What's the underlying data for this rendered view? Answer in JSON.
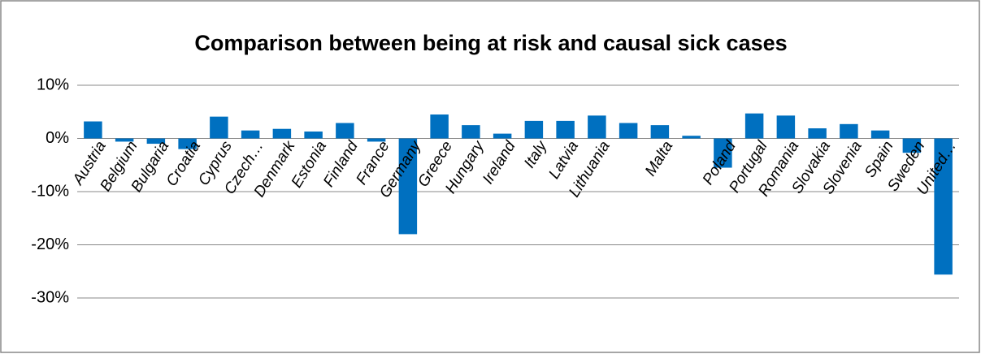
{
  "chart_data": {
    "type": "bar",
    "title": "Comparison between being at risk and causal sick cases",
    "categories": [
      "Austria",
      "Belgium",
      "Bulgaria",
      "Croatia",
      "Cyprus",
      "Czech…",
      "Denmark",
      "Estonia",
      "Finland",
      "France",
      "Germany",
      "Greece",
      "Hungary",
      "Ireland",
      "Italy",
      "Latvia",
      "Lithuania",
      null,
      "Malta",
      null,
      "Poland",
      "Portugal",
      "Romania",
      "Slovakia",
      "Slovenia",
      "Spain",
      "Sweden",
      "United…"
    ],
    "values": [
      3.2,
      -0.6,
      -1.0,
      -2.0,
      4.1,
      1.5,
      1.8,
      1.3,
      2.9,
      -0.6,
      -18,
      4.5,
      2.5,
      0.9,
      3.3,
      3.3,
      4.3,
      2.9,
      2.5,
      0.5,
      -5.5,
      4.7,
      4.3,
      1.9,
      2.7,
      1.5,
      -2.7,
      -25.6
    ],
    "color": "#0070c0",
    "ylim": [
      -30,
      10
    ],
    "yticks": [
      {
        "value": -30,
        "label": "-30%"
      },
      {
        "value": -20,
        "label": "-20%"
      },
      {
        "value": -10,
        "label": "-10%"
      },
      {
        "value": 0,
        "label": "0%"
      },
      {
        "value": 10,
        "label": "10%"
      }
    ],
    "grid": true
  }
}
